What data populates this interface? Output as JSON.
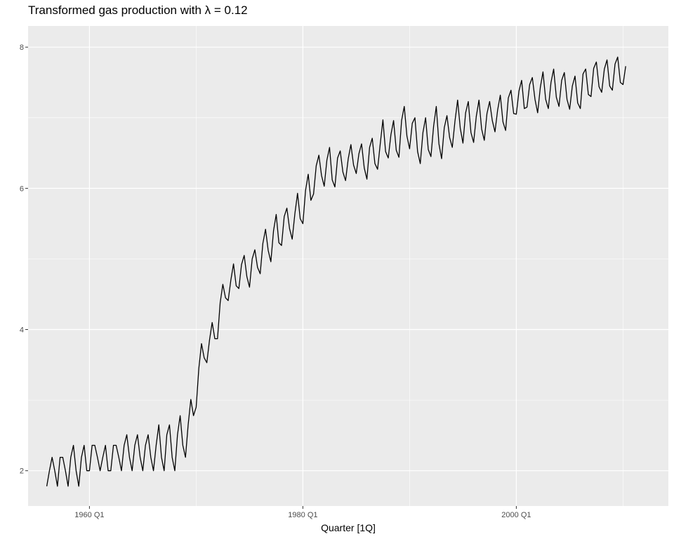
{
  "chart_data": {
    "type": "line",
    "title": "Transformed gas production with λ = 0.12",
    "xlabel": "Quarter [1Q]",
    "ylabel": "",
    "x_start": "1956 Q1",
    "x_end": "2010 Q2",
    "xlim": [
      "1954 Q2",
      "2014 Q2"
    ],
    "ylim": [
      1.5,
      8.3
    ],
    "x_ticks": [
      {
        "label": "1960 Q1",
        "year": 1960
      },
      {
        "label": "1980 Q1",
        "year": 1980
      },
      {
        "label": "2000 Q1",
        "year": 2000
      }
    ],
    "y_ticks": [
      2,
      4,
      6,
      8
    ],
    "grid": true,
    "colors": {
      "panel": "#ebebeb",
      "grid": "#ffffff",
      "line": "#000000"
    },
    "series": [
      {
        "values": [
          1.78,
          2.0,
          2.19,
          2.0,
          1.78,
          2.19,
          2.19,
          2.0,
          1.78,
          2.19,
          2.36,
          2.0,
          1.78,
          2.19,
          2.36,
          2.0,
          2.0,
          2.36,
          2.36,
          2.19,
          2.0,
          2.19,
          2.36,
          2.0,
          2.0,
          2.36,
          2.36,
          2.19,
          2.0,
          2.36,
          2.51,
          2.19,
          2.0,
          2.36,
          2.51,
          2.19,
          2.0,
          2.36,
          2.51,
          2.19,
          2.0,
          2.36,
          2.65,
          2.19,
          2.0,
          2.51,
          2.65,
          2.19,
          2.0,
          2.51,
          2.78,
          2.36,
          2.19,
          2.65,
          3.01,
          2.78,
          2.9,
          3.45,
          3.8,
          3.6,
          3.53,
          3.85,
          4.1,
          3.87,
          3.87,
          4.38,
          4.64,
          4.45,
          4.41,
          4.7,
          4.93,
          4.62,
          4.58,
          4.92,
          5.05,
          4.75,
          4.6,
          5.0,
          5.13,
          4.88,
          4.79,
          5.22,
          5.42,
          5.12,
          4.96,
          5.4,
          5.63,
          5.23,
          5.19,
          5.6,
          5.72,
          5.43,
          5.28,
          5.64,
          5.93,
          5.57,
          5.5,
          5.97,
          6.2,
          5.83,
          5.92,
          6.32,
          6.47,
          6.18,
          6.03,
          6.4,
          6.58,
          6.12,
          6.02,
          6.43,
          6.53,
          6.23,
          6.11,
          6.42,
          6.62,
          6.33,
          6.21,
          6.49,
          6.63,
          6.29,
          6.13,
          6.58,
          6.71,
          6.35,
          6.27,
          6.63,
          6.97,
          6.52,
          6.43,
          6.76,
          6.96,
          6.54,
          6.44,
          6.96,
          7.16,
          6.74,
          6.56,
          6.92,
          7.0,
          6.52,
          6.35,
          6.79,
          7.0,
          6.55,
          6.45,
          6.88,
          7.16,
          6.63,
          6.42,
          6.86,
          7.03,
          6.72,
          6.58,
          6.95,
          7.25,
          6.85,
          6.64,
          7.07,
          7.23,
          6.79,
          6.65,
          7.02,
          7.25,
          6.84,
          6.68,
          7.06,
          7.23,
          6.96,
          6.8,
          7.11,
          7.32,
          6.94,
          6.82,
          7.28,
          7.39,
          7.06,
          7.05,
          7.38,
          7.53,
          7.13,
          7.15,
          7.47,
          7.57,
          7.26,
          7.07,
          7.43,
          7.65,
          7.26,
          7.13,
          7.5,
          7.69,
          7.29,
          7.16,
          7.53,
          7.64,
          7.26,
          7.12,
          7.45,
          7.59,
          7.21,
          7.13,
          7.62,
          7.69,
          7.33,
          7.3,
          7.7,
          7.79,
          7.44,
          7.36,
          7.69,
          7.82,
          7.45,
          7.39,
          7.76,
          7.86,
          7.5,
          7.47,
          7.73
        ]
      }
    ]
  }
}
